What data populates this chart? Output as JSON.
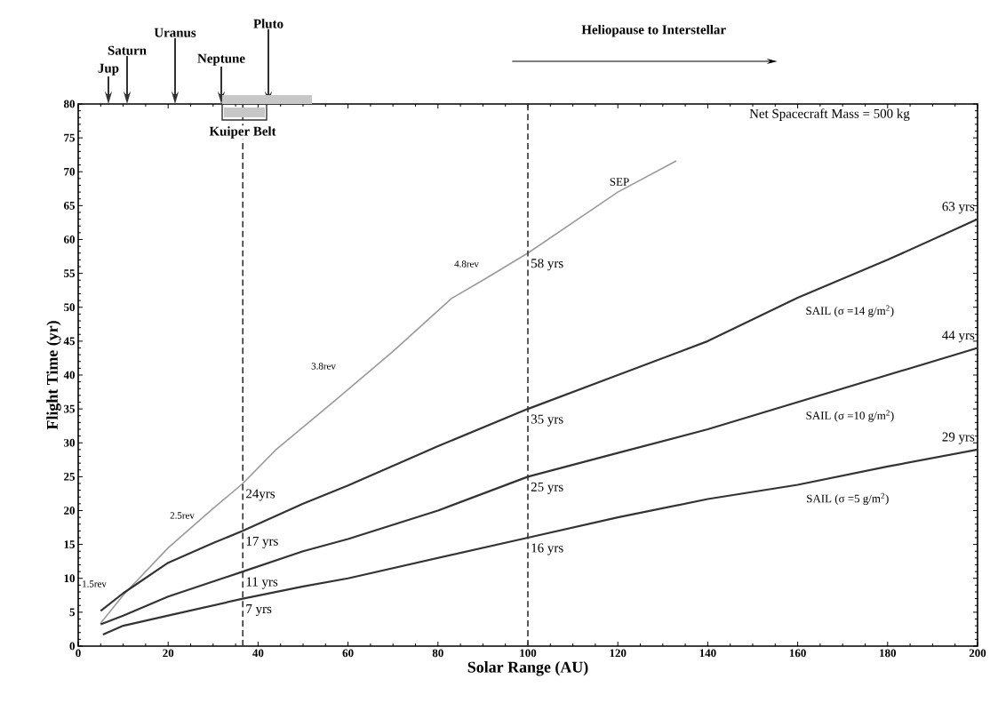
{
  "chart_data": {
    "type": "line",
    "xlabel": "Solar Range (AU)",
    "ylabel": "Flight Time (yr)",
    "xlim": [
      0,
      200
    ],
    "ylim": [
      0,
      80
    ],
    "xticks": [
      0,
      20,
      40,
      60,
      80,
      100,
      120,
      140,
      160,
      180,
      200
    ],
    "yticks": [
      0,
      5,
      10,
      15,
      20,
      25,
      30,
      35,
      40,
      45,
      50,
      55,
      60,
      65,
      70,
      75,
      80
    ],
    "series": [
      {
        "name": "SEP",
        "color": "#9a9a9a",
        "x": [
          4.9,
          10,
          20,
          30,
          36.6,
          44,
          56.7,
          70,
          83,
          90,
          100,
          110,
          120,
          133
        ],
        "values": [
          3.3,
          7.5,
          14.5,
          20.3,
          24,
          29,
          36,
          43.5,
          51.3,
          54,
          58,
          62.5,
          67,
          71.6
        ]
      },
      {
        "name": "SAIL  (σ =14 g/m$^{2}$)",
        "color": "#333333",
        "x": [
          5,
          10,
          20,
          30,
          36.6,
          50,
          60,
          80,
          100,
          120,
          140,
          160,
          180,
          200
        ],
        "values": [
          5.2,
          7.8,
          12.3,
          15.2,
          17,
          21,
          23.7,
          29.5,
          35,
          40,
          45,
          51.4,
          57,
          63
        ]
      },
      {
        "name": "SAIL  (σ =10 g/m$^{2}$)",
        "color": "#333333",
        "x": [
          5,
          10,
          20,
          36.6,
          50,
          60,
          80,
          100,
          120,
          140,
          160,
          180,
          200
        ],
        "values": [
          3.2,
          4.5,
          7.3,
          11,
          14,
          15.8,
          20,
          25,
          28.5,
          32,
          36,
          40,
          44
        ]
      },
      {
        "name": "SAIL  (σ =5 g/m$^{2}$)",
        "color": "#333333",
        "x": [
          5.5,
          10,
          20,
          36.6,
          50,
          60,
          80,
          100,
          120,
          140,
          160,
          180,
          200
        ],
        "values": [
          1.7,
          3,
          4.5,
          7,
          8.8,
          10,
          13,
          16,
          19,
          21.7,
          23.8,
          26.5,
          29
        ]
      }
    ],
    "ref_lines": [
      {
        "axis": "x",
        "value": 36.6,
        "line_style": "dashed",
        "color": "#333333"
      },
      {
        "axis": "x",
        "value": 100,
        "line_style": "dashed",
        "color": "#333333"
      }
    ],
    "annotations": [
      "Jup",
      "Saturn",
      "Uranus",
      "Neptune",
      "Pluto",
      "Heliopause  to Interstellar",
      "Net Spacecraft Mass = 500 kg",
      "1.5rev",
      "2.5rev",
      "3.8rev",
      "4.8rev",
      {
        "text": "7 yrs",
        "x": 36.6,
        "y": 7
      },
      {
        "text": "11 yrs",
        "x": 36.6,
        "y": 11
      },
      {
        "text": "17 yrs",
        "x": 36.6,
        "y": 17
      },
      {
        "text": "24yrs",
        "x": 36.6,
        "y": 24
      },
      {
        "text": "16 yrs",
        "x": 100,
        "y": 16
      },
      {
        "text": "25 yrs",
        "x": 100,
        "y": 25
      },
      {
        "text": "35 yrs",
        "x": 100,
        "y": 35
      },
      {
        "text": "58 yrs",
        "x": 100,
        "y": 58
      },
      {
        "text": "29 yrs",
        "x": 200,
        "y": 29
      },
      {
        "text": "44 yrs",
        "x": 200,
        "y": 44
      },
      {
        "text": "63 yrs",
        "x": 200,
        "y": 63
      },
      "Kuiper Belt"
    ],
    "line_style": "solid",
    "marker": "none"
  }
}
